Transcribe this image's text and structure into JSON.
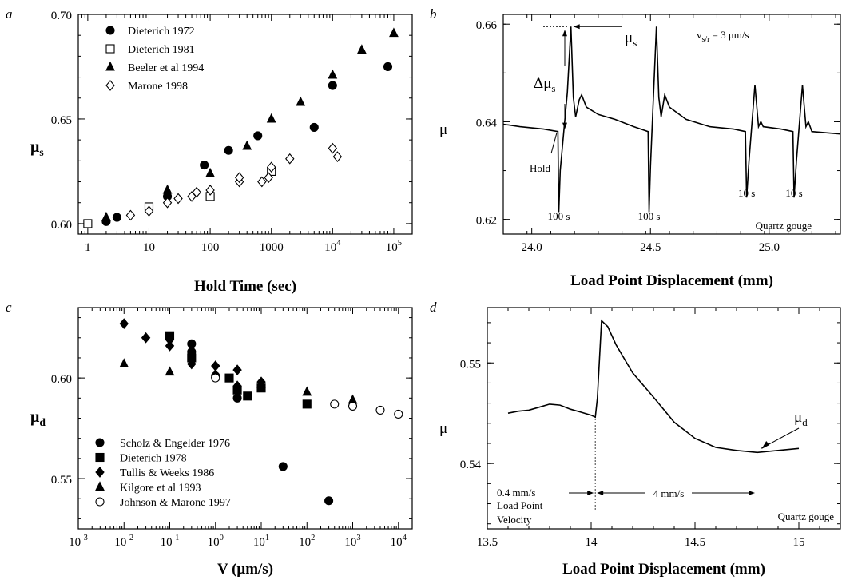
{
  "chart_data": [
    {
      "type": "scatter",
      "panel_label": "a",
      "xlabel": "Hold Time (sec)",
      "ylabel": "μ",
      "ylabel_sub": "s",
      "x_scale": "log",
      "xlim": [
        0.7,
        200000
      ],
      "ylim": [
        0.595,
        0.7
      ],
      "x_ticks": [
        {
          "v": 1,
          "label": "1"
        },
        {
          "v": 10,
          "label": "10"
        },
        {
          "v": 100,
          "label": "100"
        },
        {
          "v": 1000,
          "label": "1000"
        },
        {
          "v": 10000,
          "label": "10",
          "sup": "4"
        },
        {
          "v": 100000,
          "label": "10",
          "sup": "5"
        }
      ],
      "y_ticks": [
        {
          "v": 0.6,
          "label": "0.60"
        },
        {
          "v": 0.65,
          "label": "0.65"
        },
        {
          "v": 0.7,
          "label": "0.70"
        }
      ],
      "legend_position": "top-left",
      "series": [
        {
          "name": "Dieterich 1972",
          "marker": "circle-filled",
          "points": [
            [
              2,
              0.601
            ],
            [
              3,
              0.603
            ],
            [
              10,
              0.607
            ],
            [
              20,
              0.613
            ],
            [
              80,
              0.628
            ],
            [
              200,
              0.635
            ],
            [
              600,
              0.642
            ],
            [
              5000,
              0.646
            ],
            [
              10000,
              0.666
            ],
            [
              80000,
              0.675
            ]
          ]
        },
        {
          "name": "Dieterich 1981",
          "marker": "square-open",
          "points": [
            [
              1,
              0.6
            ],
            [
              10,
              0.608
            ],
            [
              100,
              0.613
            ],
            [
              1000,
              0.625
            ]
          ]
        },
        {
          "name": "Beeler et al 1994",
          "marker": "triangle-filled",
          "points": [
            [
              2,
              0.603
            ],
            [
              20,
              0.616
            ],
            [
              100,
              0.624
            ],
            [
              400,
              0.637
            ],
            [
              1000,
              0.65
            ],
            [
              3000,
              0.658
            ],
            [
              10000,
              0.671
            ],
            [
              30000,
              0.683
            ],
            [
              100000,
              0.691
            ]
          ]
        },
        {
          "name": "Marone 1998",
          "marker": "diamond-open",
          "points": [
            [
              5,
              0.604
            ],
            [
              10,
              0.606
            ],
            [
              20,
              0.61
            ],
            [
              30,
              0.612
            ],
            [
              50,
              0.613
            ],
            [
              60,
              0.615
            ],
            [
              100,
              0.616
            ],
            [
              300,
              0.62
            ],
            [
              300,
              0.622
            ],
            [
              700,
              0.62
            ],
            [
              900,
              0.622
            ],
            [
              1000,
              0.627
            ],
            [
              2000,
              0.631
            ],
            [
              10000,
              0.636
            ],
            [
              12000,
              0.632
            ]
          ]
        }
      ]
    },
    {
      "type": "line",
      "panel_label": "b",
      "xlabel": "Load Point Displacement   (mm)",
      "ylabel": "μ",
      "xlim": [
        23.88,
        25.3
      ],
      "ylim": [
        0.617,
        0.662
      ],
      "x_ticks": [
        {
          "v": 24.0,
          "label": "24.0"
        },
        {
          "v": 24.5,
          "label": "24.5"
        },
        {
          "v": 25.0,
          "label": "25.0"
        }
      ],
      "y_ticks": [
        {
          "v": 0.62,
          "label": "0.62"
        },
        {
          "v": 0.64,
          "label": "0.64"
        },
        {
          "v": 0.66,
          "label": "0.66"
        }
      ],
      "series": [
        {
          "points": [
            [
              23.88,
              0.6395
            ],
            [
              23.95,
              0.639
            ],
            [
              24.05,
              0.6385
            ],
            [
              24.11,
              0.638
            ],
            [
              24.114,
              0.6215
            ],
            [
              24.12,
              0.63
            ],
            [
              24.15,
              0.646
            ],
            [
              24.165,
              0.6595
            ],
            [
              24.175,
              0.645
            ],
            [
              24.185,
              0.641
            ],
            [
              24.2,
              0.6445
            ],
            [
              24.21,
              0.6455
            ],
            [
              24.23,
              0.643
            ],
            [
              24.28,
              0.6415
            ],
            [
              24.35,
              0.6405
            ],
            [
              24.43,
              0.639
            ],
            [
              24.49,
              0.638
            ],
            [
              24.494,
              0.6215
            ],
            [
              24.5,
              0.631
            ],
            [
              24.525,
              0.6595
            ],
            [
              24.535,
              0.645
            ],
            [
              24.545,
              0.641
            ],
            [
              24.56,
              0.6455
            ],
            [
              24.58,
              0.643
            ],
            [
              24.65,
              0.6405
            ],
            [
              24.75,
              0.639
            ],
            [
              24.85,
              0.6385
            ],
            [
              24.9,
              0.638
            ],
            [
              24.905,
              0.6245
            ],
            [
              24.915,
              0.632
            ],
            [
              24.94,
              0.6475
            ],
            [
              24.955,
              0.639
            ],
            [
              24.965,
              0.64
            ],
            [
              24.975,
              0.639
            ],
            [
              25.05,
              0.6385
            ],
            [
              25.1,
              0.638
            ],
            [
              25.105,
              0.6245
            ],
            [
              25.115,
              0.632
            ],
            [
              25.14,
              0.6475
            ],
            [
              25.155,
              0.639
            ],
            [
              25.165,
              0.64
            ],
            [
              25.18,
              0.638
            ],
            [
              25.3,
              0.6375
            ]
          ]
        }
      ],
      "annotations": {
        "vel_label": "v",
        "vel_sub": "s/r",
        "vel_value": "= 3 μm/s",
        "mu_s": "μ",
        "mu_s_sub": "s",
        "delta_mu": "Δμ",
        "delta_mu_sub": "s",
        "hold": "Hold",
        "t1": "100 s",
        "t2": "100 s",
        "t3": "10 s",
        "t4": "10 s",
        "material": "Quartz gouge"
      }
    },
    {
      "type": "scatter",
      "panel_label": "c",
      "xlabel": "V (μm/s)",
      "ylabel": "μ",
      "ylabel_sub": "d",
      "x_scale": "log",
      "xlim": [
        0.001,
        20000
      ],
      "ylim": [
        0.525,
        0.635
      ],
      "x_ticks": [
        {
          "v": 0.001,
          "label": "10",
          "sup": "-3"
        },
        {
          "v": 0.01,
          "label": "10",
          "sup": "-2"
        },
        {
          "v": 0.1,
          "label": "10",
          "sup": "-1"
        },
        {
          "v": 1,
          "label": "10",
          "sup": "0"
        },
        {
          "v": 10,
          "label": "10",
          "sup": "1"
        },
        {
          "v": 100,
          "label": "10",
          "sup": "2"
        },
        {
          "v": 1000,
          "label": "10",
          "sup": "3"
        },
        {
          "v": 10000,
          "label": "10",
          "sup": "4"
        }
      ],
      "y_ticks": [
        {
          "v": 0.55,
          "label": "0.55"
        },
        {
          "v": 0.6,
          "label": "0.60"
        }
      ],
      "legend_position": "bottom-left",
      "series": [
        {
          "name": "Scholz & Engelder 1976",
          "marker": "circle-filled",
          "points": [
            [
              0.3,
              0.617
            ],
            [
              0.3,
              0.613
            ],
            [
              1,
              0.601
            ],
            [
              3,
              0.59
            ],
            [
              30,
              0.556
            ],
            [
              300,
              0.539
            ]
          ]
        },
        {
          "name": "Dieterich 1978",
          "marker": "square-filled",
          "points": [
            [
              0.1,
              0.621
            ],
            [
              0.3,
              0.61
            ],
            [
              2,
              0.6
            ],
            [
              3,
              0.594
            ],
            [
              5,
              0.591
            ],
            [
              10,
              0.595
            ],
            [
              100,
              0.587
            ]
          ]
        },
        {
          "name": "Tullis & Weeks 1986",
          "marker": "diamond-filled",
          "points": [
            [
              0.01,
              0.627
            ],
            [
              0.03,
              0.62
            ],
            [
              0.1,
              0.619
            ],
            [
              0.1,
              0.616
            ],
            [
              0.3,
              0.607
            ],
            [
              1,
              0.606
            ],
            [
              3,
              0.604
            ],
            [
              3,
              0.596
            ],
            [
              10,
              0.598
            ]
          ]
        },
        {
          "name": "Kilgore et al 1993",
          "marker": "triangle-filled",
          "points": [
            [
              0.01,
              0.607
            ],
            [
              0.1,
              0.603
            ],
            [
              1,
              0.602
            ],
            [
              10,
              0.597
            ],
            [
              100,
              0.593
            ],
            [
              1000,
              0.589
            ]
          ]
        },
        {
          "name": "Johnson & Marone 1997",
          "marker": "circle-open",
          "points": [
            [
              1,
              0.6
            ],
            [
              400,
              0.587
            ],
            [
              1000,
              0.586
            ],
            [
              4000,
              0.584
            ],
            [
              10000,
              0.582
            ]
          ]
        }
      ]
    },
    {
      "type": "line",
      "panel_label": "d",
      "xlabel": "Load Point Displacement  (mm)",
      "ylabel": "μ",
      "xlim": [
        13.5,
        15.2
      ],
      "ylim": [
        0.5335,
        0.5555
      ],
      "x_ticks": [
        {
          "v": 13.5,
          "label": "13.5"
        },
        {
          "v": 14,
          "label": "14"
        },
        {
          "v": 14.5,
          "label": "14.5"
        },
        {
          "v": 15,
          "label": "15"
        }
      ],
      "y_ticks": [
        {
          "v": 0.54,
          "label": "0.54"
        },
        {
          "v": 0.55,
          "label": "0.55"
        }
      ],
      "step_x": 14.02,
      "series": [
        {
          "points": [
            [
              13.6,
              0.545
            ],
            [
              13.65,
              0.5452
            ],
            [
              13.7,
              0.5453
            ],
            [
              13.75,
              0.5456
            ],
            [
              13.8,
              0.5459
            ],
            [
              13.85,
              0.5458
            ],
            [
              13.9,
              0.5454
            ],
            [
              13.95,
              0.5451
            ],
            [
              14.0,
              0.5448
            ],
            [
              14.02,
              0.5446
            ],
            [
              14.03,
              0.5465
            ],
            [
              14.05,
              0.5542
            ],
            [
              14.08,
              0.5536
            ],
            [
              14.12,
              0.5518
            ],
            [
              14.2,
              0.549
            ],
            [
              14.3,
              0.5466
            ],
            [
              14.4,
              0.5441
            ],
            [
              14.5,
              0.5425
            ],
            [
              14.6,
              0.5416
            ],
            [
              14.7,
              0.5413
            ],
            [
              14.8,
              0.5411
            ],
            [
              14.9,
              0.5413
            ],
            [
              15.0,
              0.5415
            ]
          ]
        }
      ],
      "annotations": {
        "mu_d": "μ",
        "mu_d_sub": "d",
        "v_low": "0.4 mm/s",
        "lp1": "Load Point",
        "lp2": "Velocity",
        "v_high": "4 mm/s",
        "material": "Quartz gouge"
      }
    }
  ]
}
